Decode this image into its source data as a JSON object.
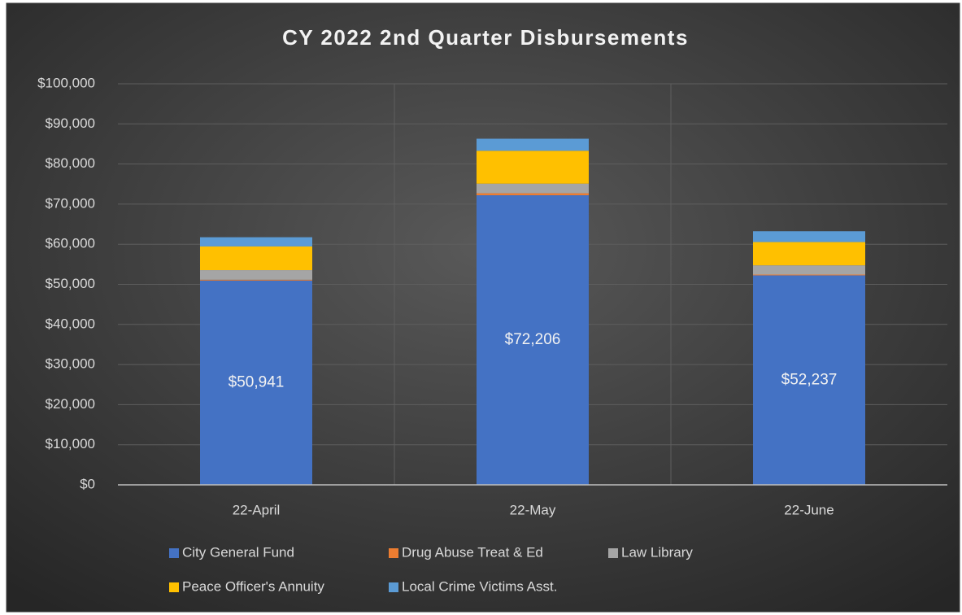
{
  "chart_data": {
    "type": "stacked_bar",
    "title": "CY 2022 2nd Quarter Disbursements",
    "categories": [
      "22-April",
      "22-May",
      "22-June"
    ],
    "series": [
      {
        "name": "City General Fund",
        "color": "#4472c4",
        "values": [
          50941,
          72206,
          52237
        ],
        "value_labels": [
          "$50,941",
          "$72,206",
          "$52,237"
        ]
      },
      {
        "name": "Drug Abuse Treat & Ed",
        "color": "#ed7d31",
        "values": [
          200,
          500,
          200
        ]
      },
      {
        "name": "Law Library",
        "color": "#a5a5a5",
        "values": [
          2400,
          2400,
          2300
        ]
      },
      {
        "name": "Peace Officer's Annuity",
        "color": "#ffc000",
        "values": [
          5900,
          8200,
          5800
        ]
      },
      {
        "name": "Local Crime Victims Asst.",
        "color": "#5b9bd5",
        "values": [
          2300,
          3000,
          2700
        ]
      }
    ],
    "ylim": [
      0,
      100000
    ],
    "yticks": [
      {
        "value": 0,
        "label": "$0"
      },
      {
        "value": 10000,
        "label": "$10,000"
      },
      {
        "value": 20000,
        "label": "$20,000"
      },
      {
        "value": 30000,
        "label": "$30,000"
      },
      {
        "value": 40000,
        "label": "$40,000"
      },
      {
        "value": 50000,
        "label": "$50,000"
      },
      {
        "value": 60000,
        "label": "$60,000"
      },
      {
        "value": 70000,
        "label": "$70,000"
      },
      {
        "value": 80000,
        "label": "$80,000"
      },
      {
        "value": 90000,
        "label": "$90,000"
      },
      {
        "value": 100000,
        "label": "$100,000"
      }
    ],
    "grid": true
  }
}
